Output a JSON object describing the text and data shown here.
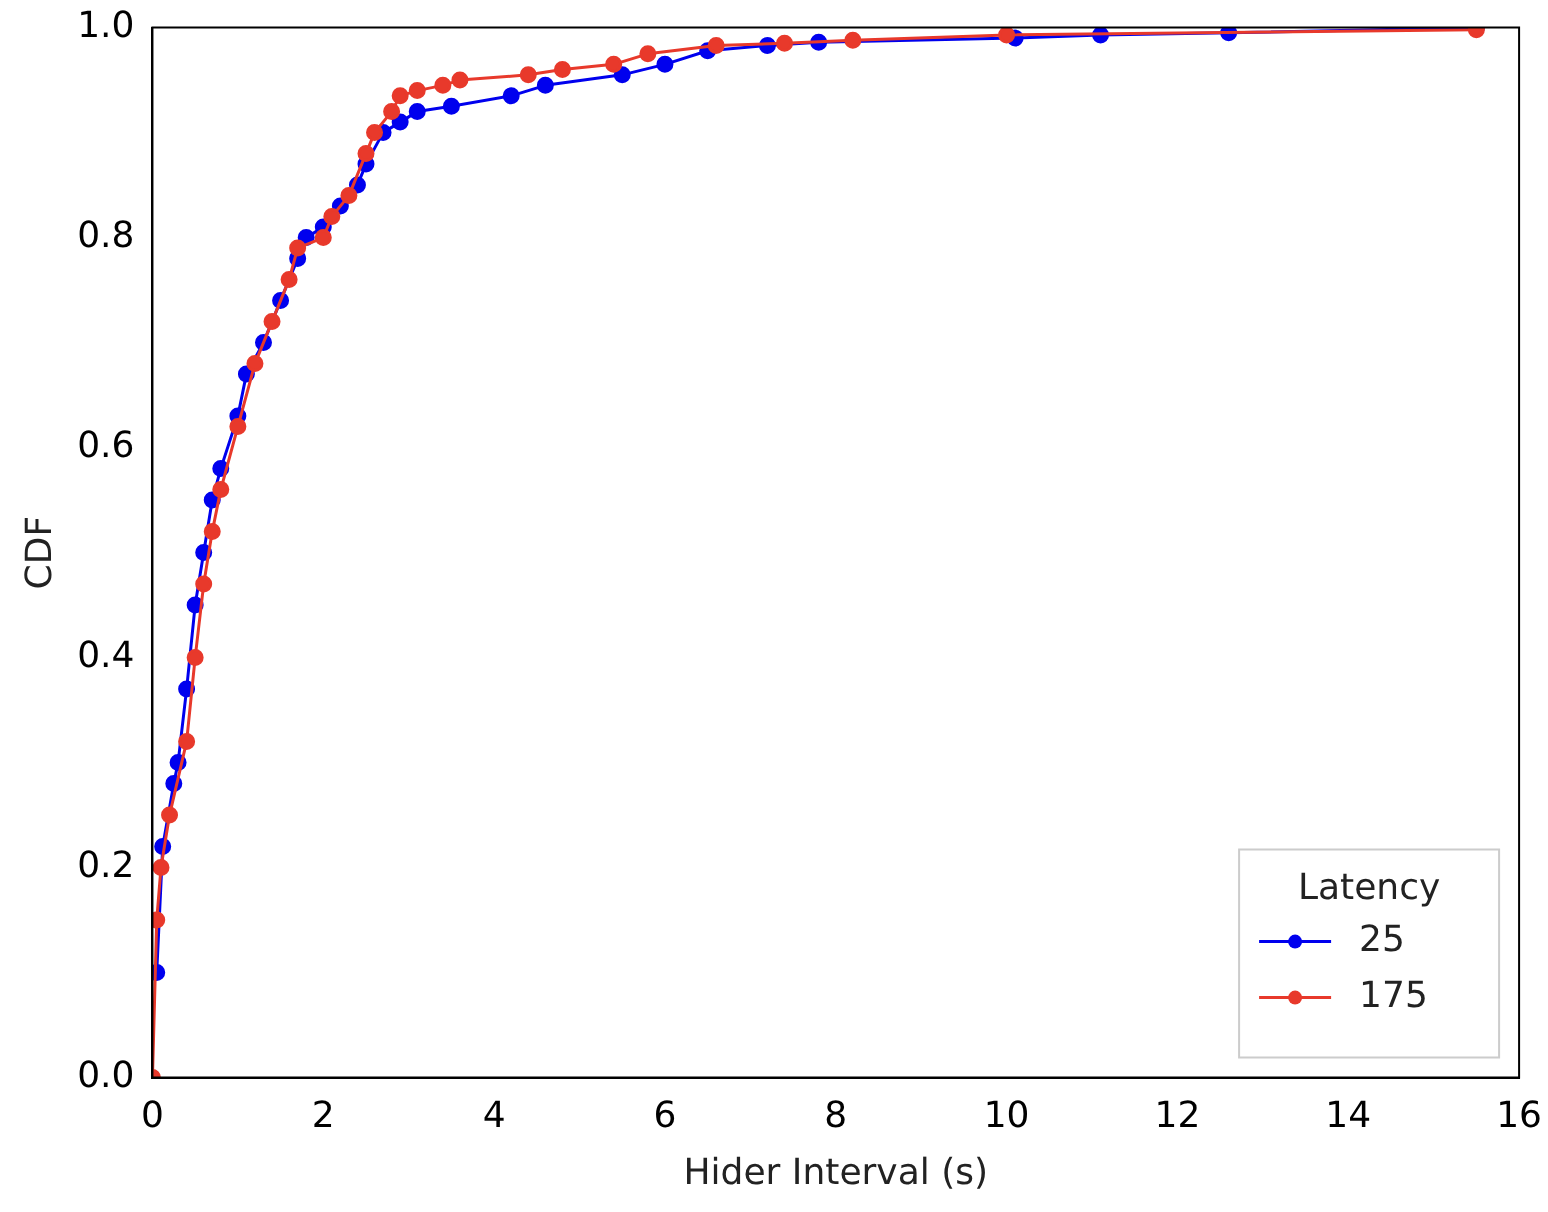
{
  "chart_data": {
    "type": "line",
    "xlabel": "Hider Interval (s)",
    "ylabel": "CDF",
    "legend_title": "Latency",
    "legend": "bottom right",
    "marker": "circle",
    "grid": false,
    "xlim": [
      0,
      16
    ],
    "xticks": [
      0,
      2,
      4,
      6,
      8,
      10,
      12,
      14,
      16
    ],
    "ylim": [
      0,
      1
    ],
    "yticks": [
      {
        "value": 0,
        "label": "0.0"
      },
      0.2,
      0.4,
      0.6,
      0.8,
      {
        "value": 1,
        "label": "1.0"
      }
    ],
    "series": [
      {
        "name": "25",
        "color": "#0000ee",
        "x": [
          0.05,
          0.12,
          0.25,
          0.3,
          0.4,
          0.5,
          0.6,
          0.7,
          0.8,
          1.0,
          1.1,
          1.3,
          1.5,
          1.7,
          1.8,
          2.0,
          2.2,
          2.4,
          2.5,
          2.7,
          2.9,
          3.1,
          3.5,
          4.2,
          4.6,
          5.5,
          6.0,
          6.5,
          7.2,
          7.8,
          10.1,
          11.1,
          12.6,
          15.5
        ],
        "values": [
          0.1,
          0.22,
          0.28,
          0.3,
          0.37,
          0.45,
          0.5,
          0.55,
          0.58,
          0.63,
          0.67,
          0.7,
          0.74,
          0.78,
          0.8,
          0.81,
          0.83,
          0.85,
          0.87,
          0.9,
          0.91,
          0.92,
          0.925,
          0.935,
          0.945,
          0.955,
          0.965,
          0.978,
          0.983,
          0.986,
          0.99,
          0.993,
          0.995,
          1.0
        ]
      },
      {
        "name": "175",
        "color": "#e8392b",
        "x": [
          0,
          0.05,
          0.1,
          0.2,
          0.4,
          0.5,
          0.6,
          0.7,
          0.8,
          1.0,
          1.2,
          1.4,
          1.6,
          1.7,
          2.0,
          2.1,
          2.3,
          2.5,
          2.6,
          2.8,
          2.9,
          3.1,
          3.4,
          3.6,
          4.4,
          4.8,
          5.4,
          5.8,
          6.6,
          7.4,
          8.2,
          10.0,
          15.5
        ],
        "values": [
          0,
          0.15,
          0.2,
          0.25,
          0.32,
          0.4,
          0.47,
          0.52,
          0.56,
          0.62,
          0.68,
          0.72,
          0.76,
          0.79,
          0.8,
          0.82,
          0.84,
          0.88,
          0.9,
          0.92,
          0.935,
          0.94,
          0.945,
          0.95,
          0.955,
          0.96,
          0.965,
          0.975,
          0.983,
          0.985,
          0.988,
          0.993,
          0.998
        ]
      }
    ]
  }
}
